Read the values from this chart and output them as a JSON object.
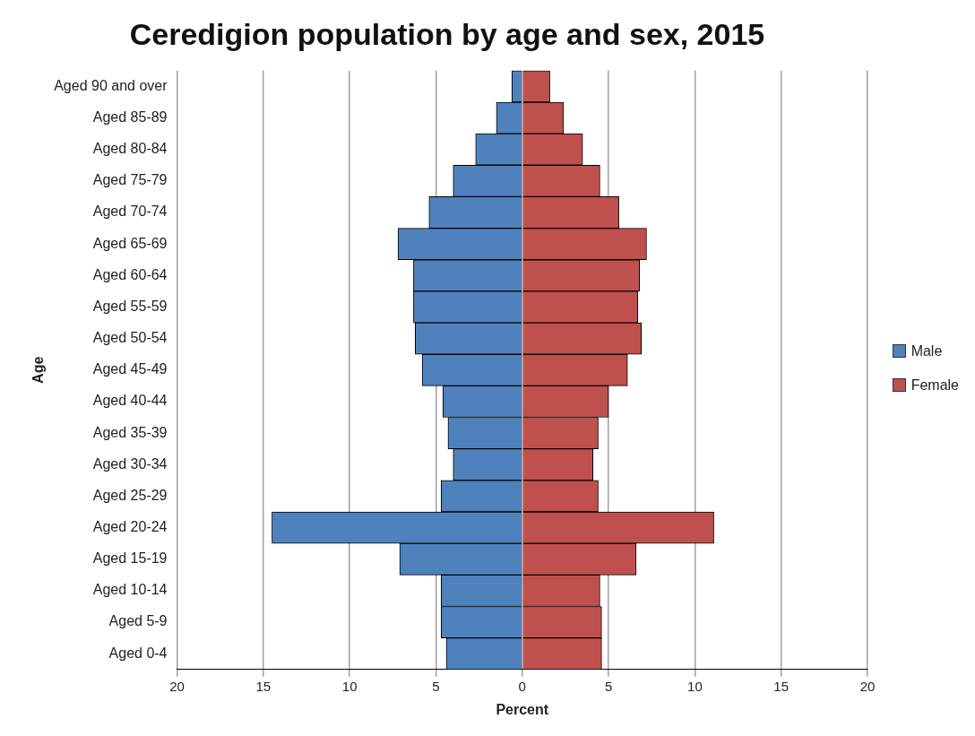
{
  "chart_data": {
    "type": "bar",
    "orientation": "horizontal",
    "stacked": true,
    "title": "Ceredigion population by age and sex, 2015",
    "xlabel": "Percent",
    "ylabel": "Age",
    "categories": [
      "Aged 90 and over",
      "Aged 85-89",
      "Aged 80-84",
      "Aged 75-79",
      "Aged 70-74",
      "Aged 65-69",
      "Aged 60-64",
      "Aged 55-59",
      "Aged 50-54",
      "Aged 45-49",
      "Aged 40-44",
      "Aged 35-39",
      "Aged 30-34",
      "Aged 25-29",
      "Aged 20-24",
      "Aged 15-19",
      "Aged 10-14",
      "Aged 5-9",
      "Aged 0-4"
    ],
    "series": [
      {
        "name": "Male",
        "color": "#4f81bd",
        "values": [
          -0.6,
          -1.5,
          -2.7,
          -4.0,
          -5.4,
          -7.2,
          -6.3,
          -6.3,
          -6.2,
          -5.8,
          -4.6,
          -4.3,
          -4.0,
          -4.7,
          -14.5,
          -7.1,
          -4.7,
          -4.7,
          -4.4
        ]
      },
      {
        "name": "Female",
        "color": "#c0504d",
        "values": [
          1.6,
          2.4,
          3.5,
          4.5,
          5.6,
          7.2,
          6.8,
          6.7,
          6.9,
          6.1,
          5.0,
          4.4,
          4.1,
          4.4,
          11.1,
          6.6,
          4.5,
          4.6,
          4.6
        ]
      }
    ],
    "xlim": [
      -20,
      20
    ],
    "xticks": [
      {
        "value": -20,
        "label": "20"
      },
      {
        "value": -15,
        "label": "15"
      },
      {
        "value": -10,
        "label": "10"
      },
      {
        "value": -5,
        "label": "5"
      },
      0,
      5,
      10,
      15,
      20
    ],
    "grid": "x",
    "legend": "right"
  }
}
